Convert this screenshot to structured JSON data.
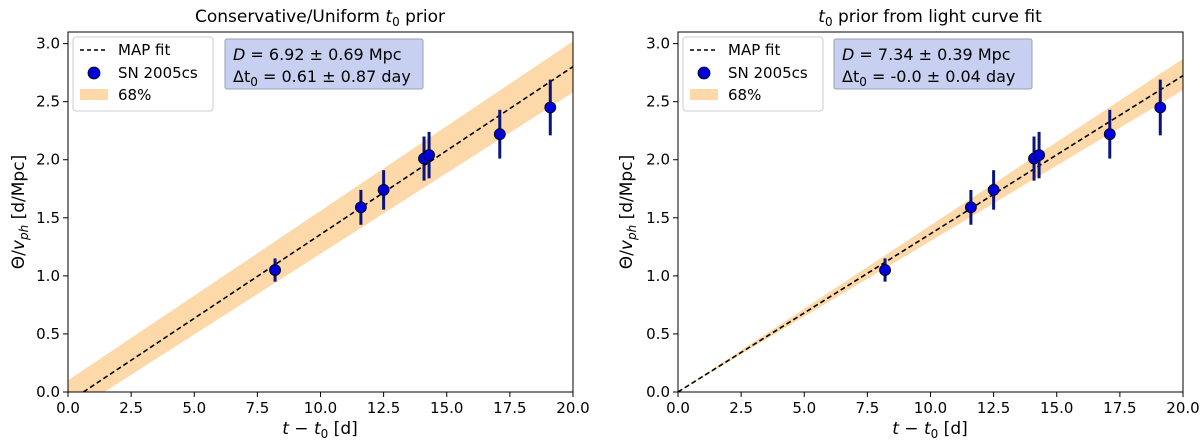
{
  "chart_data": [
    {
      "type": "scatter",
      "title_pre": "Conservative/Uniform ",
      "title_sym": "t",
      "title_sub": "0",
      "title_post": " prior",
      "xlabel_t": "t",
      "xlabel_minus": " − ",
      "xlabel_t0": "t",
      "xlabel_sub": "0",
      "xlabel_unit": " [d]",
      "ylabel_theta": "Θ/",
      "ylabel_v": "v",
      "ylabel_sub": "ph",
      "ylabel_unit": " [d/Mpc]",
      "xlim": [
        0,
        20
      ],
      "ylim": [
        0,
        3.1
      ],
      "xticks": [
        "0.0",
        "2.5",
        "5.0",
        "7.5",
        "10.0",
        "12.5",
        "15.0",
        "17.5",
        "20.0"
      ],
      "xtick_values": [
        0,
        2.5,
        5,
        7.5,
        10,
        12.5,
        15,
        17.5,
        20
      ],
      "yticks": [
        "0.0",
        "0.5",
        "1.0",
        "1.5",
        "2.0",
        "2.5",
        "3.0"
      ],
      "ytick_values": [
        0,
        0.5,
        1,
        1.5,
        2,
        2.5,
        3
      ],
      "legend": [
        "MAP fit",
        "SN 2005cs",
        "68%"
      ],
      "fit": {
        "x0": 0.61,
        "slope": 0.1445
      },
      "band": {
        "x": [
          0,
          20
        ],
        "lower": [
          -0.2,
          2.58
        ],
        "upper": [
          0.1,
          3.02
        ]
      },
      "points": [
        {
          "x": 8.2,
          "y": 1.05,
          "err": 0.1
        },
        {
          "x": 11.6,
          "y": 1.59,
          "err": 0.15
        },
        {
          "x": 12.5,
          "y": 1.74,
          "err": 0.17
        },
        {
          "x": 14.1,
          "y": 2.01,
          "err": 0.19
        },
        {
          "x": 14.3,
          "y": 2.04,
          "err": 0.2
        },
        {
          "x": 17.1,
          "y": 2.22,
          "err": 0.21
        },
        {
          "x": 19.1,
          "y": 2.45,
          "err": 0.24
        }
      ],
      "ann": {
        "d_sym": "D",
        "d_text": " =  6.92 ± 0.69 Mpc",
        "dt_sym": "Δt",
        "dt_sub": "0",
        "dt_text": " =  0.61 ± 0.87 day"
      }
    },
    {
      "type": "scatter",
      "title_pre": "",
      "title_sym": "t",
      "title_sub": "0",
      "title_post": " prior from light curve fit",
      "xlabel_t": "t",
      "xlabel_minus": " − ",
      "xlabel_t0": "t",
      "xlabel_sub": "0",
      "xlabel_unit": " [d]",
      "ylabel_theta": "Θ/",
      "ylabel_v": "v",
      "ylabel_sub": "ph",
      "ylabel_unit": " [d/Mpc]",
      "xlim": [
        0,
        20
      ],
      "ylim": [
        0,
        3.1
      ],
      "xticks": [
        "0.0",
        "2.5",
        "5.0",
        "7.5",
        "10.0",
        "12.5",
        "15.0",
        "17.5",
        "20.0"
      ],
      "xtick_values": [
        0,
        2.5,
        5,
        7.5,
        10,
        12.5,
        15,
        17.5,
        20
      ],
      "yticks": [
        "0.0",
        "0.5",
        "1.0",
        "1.5",
        "2.0",
        "2.5",
        "3.0"
      ],
      "ytick_values": [
        0,
        0.5,
        1,
        1.5,
        2,
        2.5,
        3
      ],
      "legend": [
        "MAP fit",
        "SN 2005cs",
        "68%"
      ],
      "fit": {
        "x0": 0.0,
        "slope": 0.1362
      },
      "band": {
        "x": [
          0,
          20
        ],
        "lower": [
          0.0,
          2.6
        ],
        "upper": [
          0.0,
          2.87
        ]
      },
      "points": [
        {
          "x": 8.2,
          "y": 1.05,
          "err": 0.1
        },
        {
          "x": 11.6,
          "y": 1.59,
          "err": 0.15
        },
        {
          "x": 12.5,
          "y": 1.74,
          "err": 0.17
        },
        {
          "x": 14.1,
          "y": 2.01,
          "err": 0.19
        },
        {
          "x": 14.3,
          "y": 2.04,
          "err": 0.2
        },
        {
          "x": 17.1,
          "y": 2.22,
          "err": 0.21
        },
        {
          "x": 19.1,
          "y": 2.45,
          "err": 0.24
        }
      ],
      "ann": {
        "d_sym": "D",
        "d_text": " =  7.34 ± 0.39 Mpc",
        "dt_sym": "Δt",
        "dt_sub": "0",
        "dt_text": " =  -0.0 ± 0.04 day"
      }
    }
  ],
  "colors": {
    "band": "#fdd8a8",
    "point": "#0000d8",
    "errorbar": "#0a147a",
    "fit": "#000000",
    "annotation_bg": "#c7d0f0",
    "annotation_border": "#9aa0b8"
  }
}
